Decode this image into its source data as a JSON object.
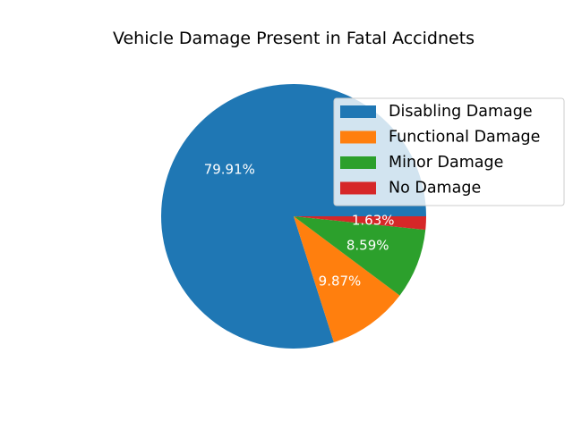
{
  "chart_data": {
    "type": "pie",
    "title": "Vehicle Damage Present in Fatal Accidnets",
    "categories": [
      "Disabling Damage",
      "Functional Damage",
      "Minor Damage",
      "No Damage"
    ],
    "values": [
      79.91,
      9.87,
      8.59,
      1.63
    ],
    "labels": [
      "79.91%",
      "9.87%",
      "8.59%",
      "1.63%"
    ],
    "colors": [
      "#1f77b4",
      "#ff7f0e",
      "#2ca02c",
      "#d62728"
    ],
    "start_angle_deg": 0,
    "direction": "counterclockwise",
    "legend_position": "upper right"
  }
}
